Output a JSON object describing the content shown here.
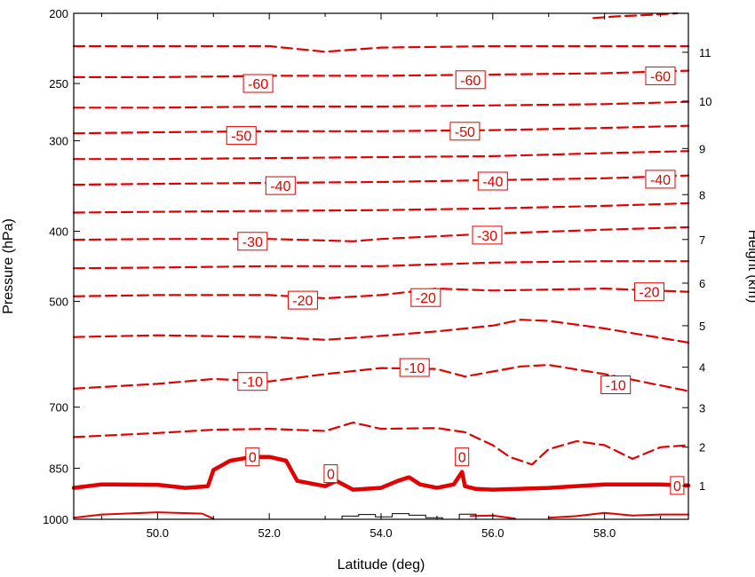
{
  "chart_data": {
    "type": "line",
    "title": "",
    "xlabel": "Latitude (deg)",
    "ylabel": "Pressure (hPa)",
    "ylabel_right": "Height (km)",
    "xlim": [
      48.5,
      59.5
    ],
    "ylim": [
      1000,
      200
    ],
    "y_scale": "log",
    "x_ticks": [
      50.0,
      52.0,
      54.0,
      56.0,
      58.0
    ],
    "x_tick_labels": [
      "50.0",
      "52.0",
      "54.0",
      "56.0",
      "58.0"
    ],
    "y_ticks": [
      200,
      250,
      300,
      400,
      500,
      700,
      850,
      1000
    ],
    "y_tick_labels": [
      "200",
      "250",
      "300",
      "400",
      "500",
      "700",
      "850",
      "1000"
    ],
    "y2_ticks": [
      1,
      2,
      3,
      4,
      5,
      6,
      7,
      8,
      9,
      10,
      11
    ],
    "y2_tick_labels": [
      "1",
      "2",
      "3",
      "4",
      "5",
      "6",
      "7",
      "8",
      "9",
      "10",
      "11"
    ],
    "grid": false,
    "line_color": "#e00000",
    "terrain_color": "#000000",
    "contours": [
      {
        "level": -65,
        "x": [
          57.8,
          58.2,
          58.8,
          59.3
        ],
        "y": [
          203,
          202,
          201,
          200
        ]
      },
      {
        "level": -60,
        "x": [
          48.5,
          50.0,
          52.0,
          53.0,
          54.0,
          56.0,
          58.0,
          59.5
        ],
        "y": [
          222,
          222,
          222,
          226,
          223,
          222,
          222,
          222
        ]
      },
      {
        "level": -60,
        "x": [
          48.5,
          50.0,
          52.0,
          54.0,
          56.0,
          58.0,
          59.5
        ],
        "y": [
          245,
          245,
          244,
          244,
          243,
          242,
          240
        ]
      },
      {
        "level": -55,
        "x": [
          48.5,
          50.0,
          52.0,
          54.0,
          56.0,
          58.0,
          59.5
        ],
        "y": [
          270,
          270,
          269,
          269,
          268,
          267,
          265
        ]
      },
      {
        "level": -50,
        "x": [
          48.5,
          50.0,
          52.0,
          54.0,
          56.0,
          58.0,
          59.5
        ],
        "y": [
          293,
          292,
          291,
          291,
          290,
          288,
          286
        ]
      },
      {
        "level": -45,
        "x": [
          48.5,
          50.0,
          52.0,
          54.0,
          56.0,
          58.0,
          59.5
        ],
        "y": [
          318,
          318,
          317,
          316,
          315,
          312,
          310
        ]
      },
      {
        "level": -40,
        "x": [
          48.5,
          50.0,
          52.0,
          54.0,
          56.0,
          58.0,
          59.5
        ],
        "y": [
          345,
          344,
          343,
          342,
          340,
          338,
          335
        ]
      },
      {
        "level": -35,
        "x": [
          48.5,
          50.0,
          52.0,
          54.0,
          56.0,
          58.0,
          59.5
        ],
        "y": [
          377,
          376,
          375,
          374,
          372,
          369,
          366
        ]
      },
      {
        "level": -30,
        "x": [
          48.5,
          50.0,
          52.0,
          53.5,
          54.0,
          56.0,
          58.0,
          59.5
        ],
        "y": [
          411,
          410,
          410,
          413,
          410,
          403,
          398,
          395
        ]
      },
      {
        "level": -25,
        "x": [
          48.5,
          50.0,
          52.0,
          54.0,
          56.0,
          58.0,
          59.5
        ],
        "y": [
          450,
          449,
          447,
          447,
          442,
          440,
          440
        ]
      },
      {
        "level": -20,
        "x": [
          48.5,
          50.0,
          52.0,
          53.0,
          54.0,
          55.0,
          56.0,
          58.0,
          59.5
        ],
        "y": [
          492,
          490,
          490,
          495,
          490,
          480,
          483,
          480,
          485
        ]
      },
      {
        "level": -15,
        "x": [
          48.5,
          50.0,
          52.0,
          53.0,
          54.0,
          55.0,
          56.0,
          56.5,
          57.0,
          58.0,
          59.5
        ],
        "y": [
          560,
          557,
          560,
          565,
          558,
          550,
          540,
          530,
          532,
          545,
          570
        ]
      },
      {
        "level": -10,
        "x": [
          48.5,
          50.0,
          51.0,
          52.0,
          53.0,
          54.0,
          55.0,
          55.5,
          56.0,
          56.5,
          57.0,
          58.0,
          59.5
        ],
        "y": [
          660,
          650,
          640,
          645,
          630,
          618,
          620,
          635,
          625,
          615,
          612,
          630,
          665
        ]
      },
      {
        "level": -5,
        "x": [
          48.5,
          50.0,
          51.0,
          52.0,
          53.0,
          53.5,
          54.0,
          55.0,
          55.5,
          56.0,
          56.3,
          56.7,
          57.0,
          57.5,
          58.0,
          58.5,
          59.0,
          59.5
        ],
        "y": [
          770,
          760,
          752,
          750,
          755,
          735,
          750,
          748,
          758,
          790,
          820,
          840,
          800,
          780,
          790,
          825,
          795,
          790
        ]
      },
      {
        "level": 0,
        "x": [
          48.5,
          49.0,
          50.0,
          50.5,
          50.9,
          51.0,
          51.3,
          51.7,
          52.0,
          52.3,
          52.5,
          53.0,
          53.2,
          53.5,
          54.0,
          54.3,
          54.5,
          54.7,
          55.0,
          55.3,
          55.45,
          55.5,
          55.7,
          56.0,
          57.0,
          58.0,
          59.0,
          59.5
        ],
        "y": [
          905,
          895,
          896,
          905,
          900,
          855,
          830,
          820,
          820,
          830,
          885,
          900,
          885,
          910,
          905,
          885,
          875,
          895,
          905,
          895,
          860,
          900,
          908,
          910,
          905,
          895,
          895,
          898
        ]
      },
      {
        "level": 0,
        "x": [
          48.5,
          49.0,
          50.0,
          50.8,
          51.0
        ],
        "y": [
          995,
          985,
          978,
          982,
          998
        ]
      },
      {
        "level": 0,
        "x": [
          55.6,
          56.0,
          56.4
        ],
        "y": [
          990,
          988,
          998
        ]
      },
      {
        "level": 0,
        "x": [
          57.0,
          57.5,
          58.0,
          58.5,
          59.0,
          59.5
        ],
        "y": [
          995,
          990,
          980,
          988,
          985,
          985
        ]
      }
    ],
    "contour_labels": [
      {
        "text": "-60",
        "x": 51.8,
        "y": 250
      },
      {
        "text": "-60",
        "x": 55.6,
        "y": 247
      },
      {
        "text": "-60",
        "x": 59.0,
        "y": 244
      },
      {
        "text": "-50",
        "x": 51.5,
        "y": 295
      },
      {
        "text": "-50",
        "x": 55.5,
        "y": 291
      },
      {
        "text": "-40",
        "x": 52.2,
        "y": 346
      },
      {
        "text": "-40",
        "x": 56.0,
        "y": 341
      },
      {
        "text": "-40",
        "x": 59.0,
        "y": 339
      },
      {
        "text": "-30",
        "x": 51.7,
        "y": 413
      },
      {
        "text": "-30",
        "x": 55.9,
        "y": 405
      },
      {
        "text": "-20",
        "x": 52.6,
        "y": 498
      },
      {
        "text": "-20",
        "x": 54.8,
        "y": 494
      },
      {
        "text": "-20",
        "x": 58.8,
        "y": 485
      },
      {
        "text": "-10",
        "x": 51.7,
        "y": 645
      },
      {
        "text": "-10",
        "x": 54.6,
        "y": 617
      },
      {
        "text": "-10",
        "x": 58.2,
        "y": 652
      },
      {
        "text": "0",
        "x": 51.7,
        "y": 820
      },
      {
        "text": "0",
        "x": 53.1,
        "y": 865
      },
      {
        "text": "0",
        "x": 55.45,
        "y": 820
      },
      {
        "text": "0",
        "x": 59.3,
        "y": 898
      }
    ],
    "terrain": {
      "x": [
        53.0,
        53.3,
        53.6,
        53.9,
        54.2,
        54.5,
        54.8,
        55.1,
        55.4,
        55.7
      ],
      "y": [
        1000,
        990,
        985,
        992,
        982,
        987,
        995,
        1000,
        984,
        1000
      ]
    }
  }
}
